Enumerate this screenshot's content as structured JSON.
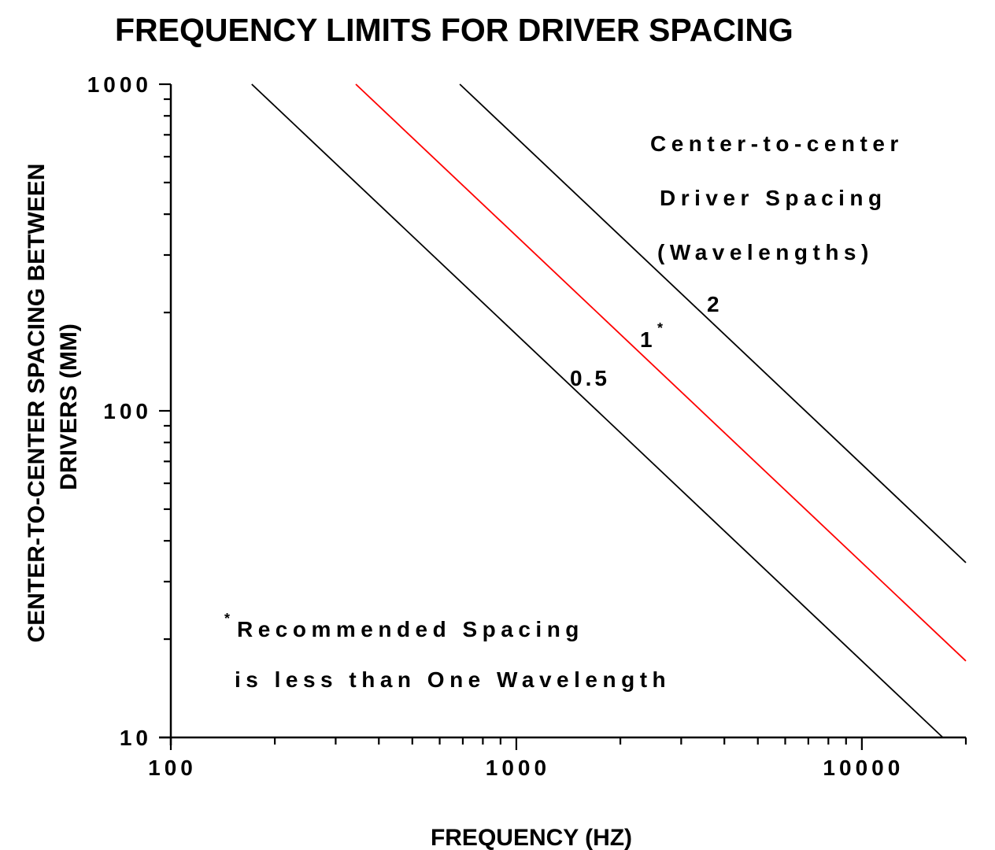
{
  "chart_data": {
    "type": "line",
    "title": "FREQUENCY LIMITS FOR DRIVER SPACING",
    "xlabel": "FREQUENCY (HZ)",
    "ylabel_lines": [
      "CENTER-TO-CENTER SPACING BETWEEN",
      "DRIVERS (MM)"
    ],
    "xscale": "log",
    "yscale": "log",
    "xlim": [
      100,
      20000
    ],
    "ylim": [
      10,
      1000
    ],
    "x_ticks": [
      {
        "value": 100,
        "label": "100"
      },
      {
        "value": 1000,
        "label": "1000"
      },
      {
        "value": 10000,
        "label": "10000"
      }
    ],
    "y_ticks": [
      {
        "value": 10,
        "label": "10"
      },
      {
        "value": 100,
        "label": "100"
      },
      {
        "value": 1000,
        "label": "1000"
      }
    ],
    "grid": false,
    "legend_title_lines": [
      "Center-to-center",
      "Driver Spacing",
      "(Wavelengths)"
    ],
    "series": [
      {
        "name": "0.5",
        "label": "0.5",
        "wavelengths": 0.5,
        "color": "#000000",
        "points": [
          [
            171.5,
            1000
          ],
          [
            17150,
            10
          ]
        ]
      },
      {
        "name": "1",
        "label": "1",
        "label_mark": "*",
        "wavelengths": 1,
        "color": "#ff0000",
        "points": [
          [
            343,
            1000
          ],
          [
            20000,
            17.15
          ]
        ]
      },
      {
        "name": "2",
        "label": "2",
        "wavelengths": 2,
        "color": "#000000",
        "points": [
          [
            686,
            1000
          ],
          [
            20000,
            34.3
          ]
        ]
      }
    ],
    "footnote": {
      "mark": "*",
      "lines": [
        "Recommended Spacing",
        "is less than One Wavelength"
      ]
    }
  }
}
